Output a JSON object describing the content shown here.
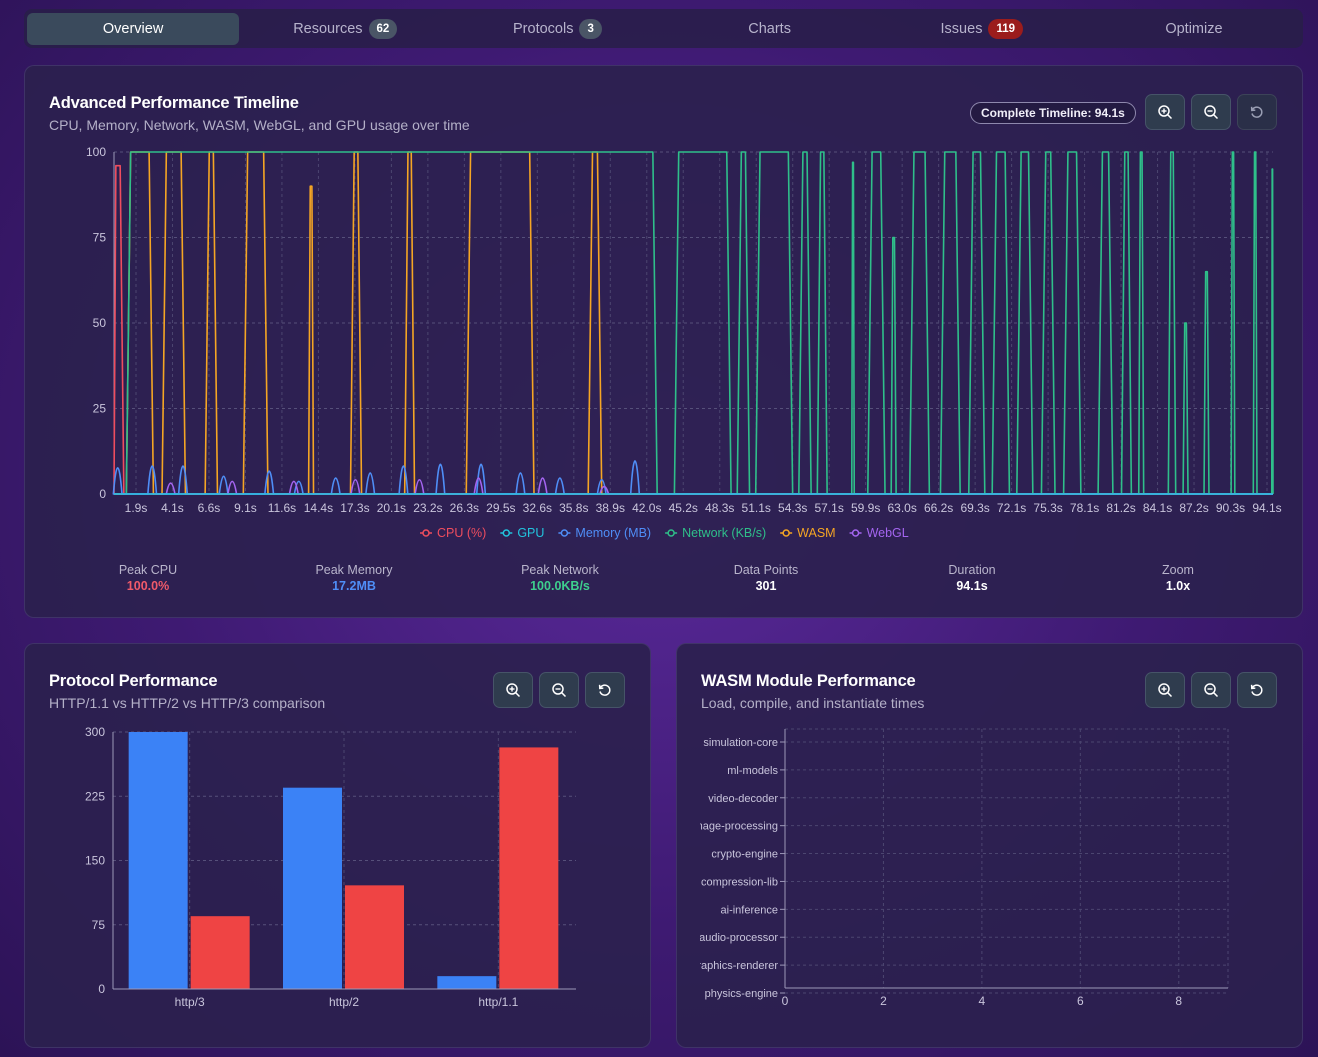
{
  "tabs": [
    {
      "label": "Overview"
    },
    {
      "label": "Resources",
      "badge": "62"
    },
    {
      "label": "Protocols",
      "badge": "3"
    },
    {
      "label": "Charts"
    },
    {
      "label": "Issues",
      "badge": "119"
    },
    {
      "label": "Optimize"
    }
  ],
  "timeline": {
    "title": "Advanced Performance Timeline",
    "subtitle": "CPU, Memory, Network, WASM, WebGL, and GPU usage over time",
    "pill": "Complete Timeline: 94.1s",
    "stats": [
      {
        "label": "Peak CPU",
        "value": "100.0%",
        "color": "#f05a6a"
      },
      {
        "label": "Peak Memory",
        "value": "17.2MB",
        "color": "#4f8ef7"
      },
      {
        "label": "Peak Network",
        "value": "100.0KB/s",
        "color": "#3ecf8e"
      },
      {
        "label": "Data Points",
        "value": "301",
        "color": "#ffffff"
      },
      {
        "label": "Duration",
        "value": "94.1s",
        "color": "#ffffff"
      },
      {
        "label": "Zoom",
        "value": "1.0x",
        "color": "#ffffff"
      }
    ]
  },
  "protocol": {
    "title": "Protocol Performance",
    "subtitle": "HTTP/1.1 vs HTTP/2 vs HTTP/3 comparison"
  },
  "wasm": {
    "title": "WASM Module Performance",
    "subtitle": "Load, compile, and instantiate times"
  },
  "icons": {
    "zoom_in": "zoom-in-icon",
    "zoom_out": "zoom-out-icon",
    "reset": "reset-icon"
  },
  "chart_data": [
    {
      "type": "line",
      "title": "Advanced Performance Timeline",
      "x_tick_labels": [
        "1.9s",
        "4.1s",
        "6.6s",
        "9.1s",
        "11.6s",
        "14.4s",
        "17.3s",
        "20.1s",
        "23.2s",
        "26.3s",
        "29.5s",
        "32.6s",
        "35.8s",
        "38.9s",
        "42.0s",
        "45.2s",
        "48.3s",
        "51.1s",
        "54.3s",
        "57.1s",
        "59.9s",
        "63.0s",
        "66.2s",
        "69.3s",
        "72.1s",
        "75.3s",
        "78.1s",
        "81.2s",
        "84.1s",
        "87.2s",
        "90.3s",
        "94.1s"
      ],
      "xlim": [
        0,
        94.1
      ],
      "ylim": [
        0,
        100
      ],
      "y_ticks": [
        0,
        25,
        50,
        75,
        100
      ],
      "legend": [
        "CPU (%)",
        "GPU",
        "Memory (MB)",
        "Network (KB/s)",
        "WASM",
        "WebGL"
      ],
      "colors": {
        "CPU (%)": "#ef4d5e",
        "GPU": "#22c3dd",
        "Memory (MB)": "#4f8ef7",
        "Network (KB/s)": "#2fbf8a",
        "WASM": "#f5a524",
        "WebGL": "#a465f0"
      },
      "series": [
        {
          "name": "CPU (%)",
          "points": [
            [
              0,
              0
            ],
            [
              0.15,
              96
            ],
            [
              0.5,
              96
            ],
            [
              0.8,
              0
            ]
          ]
        },
        {
          "name": "GPU",
          "points": [
            [
              0,
              0
            ],
            [
              94.1,
              0
            ]
          ]
        },
        {
          "name": "WASM",
          "pulses": [
            [
              1,
              3.2,
              100
            ],
            [
              3.9,
              5.8,
              100
            ],
            [
              7.4,
              8.4,
              100
            ],
            [
              10.5,
              12.5,
              100
            ],
            [
              15.8,
              16.2,
              90
            ],
            [
              19.2,
              20.1,
              100
            ],
            [
              23.6,
              24.4,
              100
            ],
            [
              28.6,
              34.1,
              100
            ],
            [
              38.5,
              39.6,
              100
            ]
          ]
        },
        {
          "name": "Network (KB/s)",
          "pulses": [
            [
              1,
              44.1,
              100
            ],
            [
              45.5,
              50.1,
              100
            ],
            [
              50.6,
              51.6,
              100
            ],
            [
              52.1,
              55.1,
              100
            ],
            [
              55.6,
              56.6,
              100
            ],
            [
              57.1,
              57.9,
              100
            ],
            [
              59.9,
              60.1,
              97
            ],
            [
              61.2,
              62.6,
              100
            ],
            [
              63.1,
              63.5,
              75
            ],
            [
              64.6,
              66.2,
              100
            ],
            [
              67.1,
              68.7,
              100
            ],
            [
              69.4,
              70.7,
              100
            ],
            [
              71.3,
              72.7,
              100
            ],
            [
              73.3,
              74.6,
              100
            ],
            [
              75.3,
              76.4,
              100
            ],
            [
              77.1,
              78.5,
              100
            ],
            [
              79.9,
              81.1,
              100
            ],
            [
              81.8,
              82.6,
              100
            ],
            [
              83.2,
              83.6,
              100
            ],
            [
              85.6,
              86.2,
              100
            ],
            [
              86.8,
              87.2,
              50
            ],
            [
              88.5,
              88.9,
              65
            ],
            [
              90.7,
              91,
              100
            ],
            [
              92.5,
              92.8,
              100
            ],
            [
              94,
              94.1,
              95
            ]
          ]
        },
        {
          "name": "Memory (MB)",
          "spikes": [
            [
              0.3,
              13
            ],
            [
              3.1,
              14
            ],
            [
              5.6,
              14
            ],
            [
              8.9,
              8
            ],
            [
              12.6,
              11
            ],
            [
              15,
              5
            ],
            [
              18,
              7
            ],
            [
              20.8,
              10
            ],
            [
              23.5,
              14
            ],
            [
              26.5,
              15
            ],
            [
              29.8,
              15
            ],
            [
              33,
              10
            ],
            [
              36.2,
              7
            ],
            [
              39.6,
              6
            ],
            [
              42.3,
              17
            ]
          ]
        },
        {
          "name": "WebGL",
          "spikes": [
            [
              4.6,
              4
            ],
            [
              9.6,
              5
            ],
            [
              14.6,
              5
            ],
            [
              19.6,
              6
            ],
            [
              24.8,
              6
            ],
            [
              29.6,
              7
            ],
            [
              34.8,
              7
            ],
            [
              39.8,
              2
            ]
          ]
        }
      ]
    },
    {
      "type": "bar",
      "title": "Protocol Performance",
      "categories": [
        "http/3",
        "http/2",
        "http/1.1"
      ],
      "series": [
        {
          "name": "blue",
          "color": "#3b82f6",
          "values": [
            300,
            235,
            15
          ]
        },
        {
          "name": "red",
          "color": "#ef4444",
          "values": [
            85,
            121,
            282
          ]
        }
      ],
      "ylim": [
        0,
        300
      ],
      "y_ticks": [
        0,
        75,
        150,
        225,
        300
      ]
    },
    {
      "type": "bar",
      "orientation": "horizontal",
      "title": "WASM Module Performance",
      "categories": [
        "simulation-core",
        "ml-models",
        "video-decoder",
        "image-processing",
        "crypto-engine",
        "compression-lib",
        "ai-inference",
        "audio-processor",
        "graphics-renderer",
        "physics-engine"
      ],
      "series": [],
      "xlim": [
        0,
        9
      ],
      "x_ticks": [
        0,
        2,
        4,
        6,
        8
      ]
    }
  ]
}
